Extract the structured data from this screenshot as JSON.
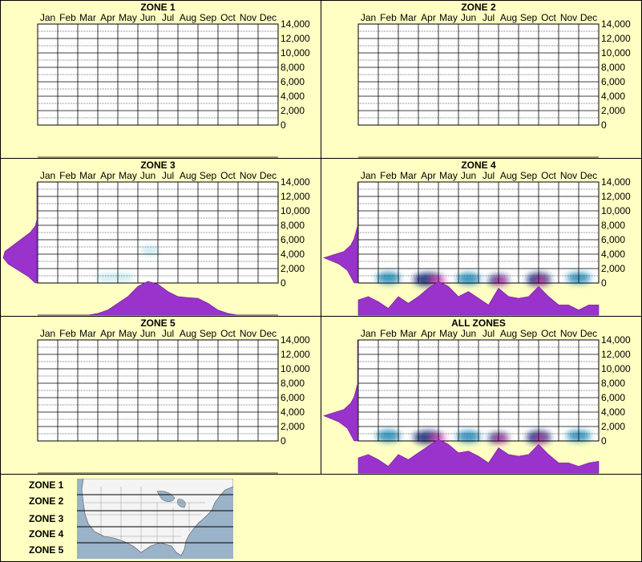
{
  "colors": {
    "background": "#ffffcc",
    "profile_fill": "#9933cc",
    "heat_low": "#bfe8f0",
    "heat_mid": "#1e8ab8",
    "heat_high": "#0a2a7a",
    "heat_peak": "#ff33cc"
  },
  "chart_data": [
    {
      "type": "heatmap",
      "title": "ZONE 1",
      "categories": [
        "Jan",
        "Feb",
        "Mar",
        "Apr",
        "May",
        "Jun",
        "Jul",
        "Aug",
        "Sep",
        "Oct",
        "Nov",
        "Dec"
      ],
      "yticks": [
        "14,000",
        "12,000",
        "10,000",
        "8,000",
        "6,000",
        "4,000",
        "2,000",
        "0"
      ],
      "ylim": [
        0,
        14000
      ],
      "cells": [],
      "month_profile": [],
      "elev_profile": []
    },
    {
      "type": "heatmap",
      "title": "ZONE 2",
      "categories": [
        "Jan",
        "Feb",
        "Mar",
        "Apr",
        "May",
        "Jun",
        "Jul",
        "Aug",
        "Sep",
        "Oct",
        "Nov",
        "Dec"
      ],
      "yticks": [
        "14,000",
        "12,000",
        "10,000",
        "8,000",
        "6,000",
        "4,000",
        "2,000",
        "0"
      ],
      "ylim": [
        0,
        14000
      ],
      "cells": [],
      "month_profile": [],
      "elev_profile": []
    },
    {
      "type": "heatmap",
      "title": "ZONE 3",
      "categories": [
        "Jan",
        "Feb",
        "Mar",
        "Apr",
        "May",
        "Jun",
        "Jul",
        "Aug",
        "Sep",
        "Oct",
        "Nov",
        "Dec"
      ],
      "yticks": [
        "14,000",
        "12,000",
        "10,000",
        "8,000",
        "6,000",
        "4,000",
        "2,000",
        "0"
      ],
      "ylim": [
        0,
        14000
      ],
      "cells": [
        {
          "month": 3.5,
          "elev": 800,
          "w": 1.2,
          "h": 1000,
          "i": 0.25
        },
        {
          "month": 4.2,
          "elev": 800,
          "w": 1.2,
          "h": 1000,
          "i": 0.3
        },
        {
          "month": 5.6,
          "elev": 4500,
          "w": 0.9,
          "h": 1200,
          "i": 0.25
        }
      ],
      "month_profile": [
        0,
        0,
        0,
        0,
        0,
        0,
        0.05,
        0.15,
        0.35,
        0.55,
        0.85,
        1.0,
        0.92,
        0.7,
        0.55,
        0.52,
        0.5,
        0.35,
        0.15,
        0.05,
        0,
        0,
        0,
        0,
        0
      ],
      "elev_profile": [
        0.05,
        0.25,
        0.55,
        0.85,
        1.0,
        0.95,
        0.7,
        0.45,
        0.2,
        0.05,
        0,
        0,
        0,
        0,
        0,
        0,
        0
      ]
    },
    {
      "type": "heatmap",
      "title": "ZONE 4",
      "categories": [
        "Jan",
        "Feb",
        "Mar",
        "Apr",
        "May",
        "Jun",
        "Jul",
        "Aug",
        "Sep",
        "Oct",
        "Nov",
        "Dec"
      ],
      "yticks": [
        "14,000",
        "12,000",
        "10,000",
        "8,000",
        "6,000",
        "4,000",
        "2,000",
        "0"
      ],
      "ylim": [
        0,
        14000
      ],
      "cells": [
        {
          "month": 1.5,
          "elev": 700,
          "w": 1.2,
          "h": 1600,
          "i": 0.6
        },
        {
          "month": 3.5,
          "elev": 500,
          "w": 1.5,
          "h": 1800,
          "i": 0.85
        },
        {
          "month": 4.0,
          "elev": 300,
          "w": 0.8,
          "h": 700,
          "i": 1.0
        },
        {
          "month": 5.5,
          "elev": 600,
          "w": 1.2,
          "h": 1600,
          "i": 0.6
        },
        {
          "month": 7.0,
          "elev": 400,
          "w": 1.0,
          "h": 1500,
          "i": 0.9
        },
        {
          "month": 7.1,
          "elev": 200,
          "w": 0.5,
          "h": 500,
          "i": 1.0
        },
        {
          "month": 9.0,
          "elev": 500,
          "w": 1.2,
          "h": 1800,
          "i": 0.85
        },
        {
          "month": 9.1,
          "elev": 250,
          "w": 0.4,
          "h": 500,
          "i": 1.0
        },
        {
          "month": 11.0,
          "elev": 700,
          "w": 1.2,
          "h": 1500,
          "i": 0.55
        }
      ],
      "month_profile": [
        0.45,
        0.55,
        0.4,
        0.2,
        0.55,
        0.35,
        0.55,
        0.8,
        1.0,
        0.85,
        0.55,
        0.7,
        0.5,
        0.3,
        0.8,
        0.55,
        0.5,
        0.55,
        0.85,
        0.55,
        0.3,
        0.3,
        0.15,
        0.3,
        0.3
      ],
      "elev_profile": [
        0.1,
        0.2,
        0.3,
        0.55,
        1.0,
        0.4,
        0.2,
        0.1,
        0.05,
        0,
        0,
        0,
        0,
        0,
        0,
        0,
        0
      ]
    },
    {
      "type": "heatmap",
      "title": "ZONE 5",
      "categories": [
        "Jan",
        "Feb",
        "Mar",
        "Apr",
        "May",
        "Jun",
        "Jul",
        "Aug",
        "Sep",
        "Oct",
        "Nov",
        "Dec"
      ],
      "yticks": [
        "14,000",
        "12,000",
        "10,000",
        "8,000",
        "6,000",
        "4,000",
        "2,000",
        "0"
      ],
      "ylim": [
        0,
        14000
      ],
      "cells": [],
      "month_profile": [],
      "elev_profile": []
    },
    {
      "type": "heatmap",
      "title": "ALL ZONES",
      "categories": [
        "Jan",
        "Feb",
        "Mar",
        "Apr",
        "May",
        "Jun",
        "Jul",
        "Aug",
        "Sep",
        "Oct",
        "Nov",
        "Dec"
      ],
      "yticks": [
        "14,000",
        "12,000",
        "10,000",
        "8,000",
        "6,000",
        "4,000",
        "2,000",
        "0"
      ],
      "ylim": [
        0,
        14000
      ],
      "cells": [
        {
          "month": 1.5,
          "elev": 700,
          "w": 1.2,
          "h": 1600,
          "i": 0.6
        },
        {
          "month": 3.5,
          "elev": 500,
          "w": 1.5,
          "h": 1800,
          "i": 0.85
        },
        {
          "month": 4.0,
          "elev": 300,
          "w": 0.8,
          "h": 700,
          "i": 1.0
        },
        {
          "month": 5.5,
          "elev": 600,
          "w": 1.2,
          "h": 1600,
          "i": 0.6
        },
        {
          "month": 7.0,
          "elev": 400,
          "w": 1.0,
          "h": 1500,
          "i": 0.9
        },
        {
          "month": 7.1,
          "elev": 200,
          "w": 0.5,
          "h": 500,
          "i": 1.0
        },
        {
          "month": 9.0,
          "elev": 500,
          "w": 1.2,
          "h": 1800,
          "i": 0.85
        },
        {
          "month": 9.1,
          "elev": 250,
          "w": 0.4,
          "h": 500,
          "i": 1.0
        },
        {
          "month": 11.0,
          "elev": 700,
          "w": 1.2,
          "h": 1500,
          "i": 0.55
        }
      ],
      "month_profile": [
        0.45,
        0.55,
        0.4,
        0.2,
        0.55,
        0.4,
        0.6,
        0.8,
        1.0,
        0.85,
        0.6,
        0.65,
        0.5,
        0.3,
        0.75,
        0.55,
        0.5,
        0.55,
        0.85,
        0.55,
        0.3,
        0.3,
        0.2,
        0.3,
        0.35
      ],
      "elev_profile": [
        0.1,
        0.2,
        0.3,
        0.55,
        1.0,
        0.4,
        0.2,
        0.1,
        0.05,
        0,
        0,
        0,
        0,
        0,
        0,
        0,
        0
      ]
    }
  ],
  "legend": {
    "zones": [
      "ZONE 1",
      "ZONE 2",
      "ZONE 3",
      "ZONE 4",
      "ZONE 5"
    ]
  }
}
